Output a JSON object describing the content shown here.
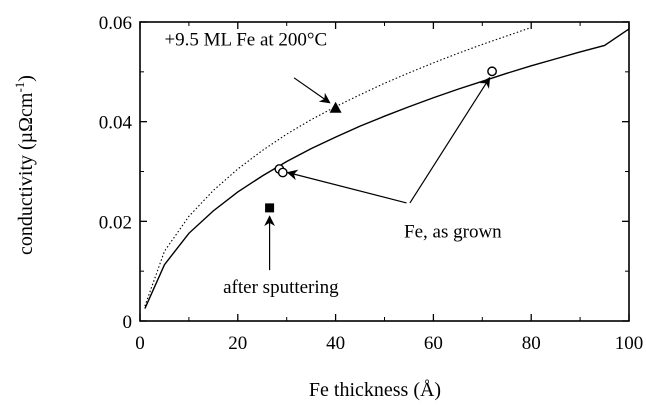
{
  "chart_data": {
    "type": "scatter",
    "title": "",
    "xlabel": "Fe thickness (Å)",
    "ylabel_text": "conductivity (",
    "ylabel_unit": "µΩcm",
    "ylabel_exp": "-1",
    "ylabel_close": ")",
    "xlim": [
      0,
      100
    ],
    "ylim": [
      0,
      0.06
    ],
    "x_ticks": [
      0,
      20,
      40,
      60,
      80,
      100
    ],
    "x_tick_labels": [
      "0",
      "20",
      "40",
      "60",
      "80",
      "100"
    ],
    "y_ticks": [
      0,
      0.02,
      0.04,
      0.06
    ],
    "y_tick_labels": [
      "0",
      "0.02",
      "0.04",
      "0.06"
    ],
    "grid": false,
    "series": [
      {
        "style": "solid-line",
        "x": [
          1,
          5,
          10,
          15,
          20,
          25,
          30,
          35,
          40,
          45,
          50,
          55,
          60,
          65,
          70,
          75,
          80,
          85,
          90,
          95,
          100
        ],
        "y": [
          0.0025,
          0.0113,
          0.0176,
          0.0221,
          0.0259,
          0.0291,
          0.032,
          0.0346,
          0.0369,
          0.0391,
          0.0411,
          0.043,
          0.0448,
          0.0465,
          0.0481,
          0.0497,
          0.0512,
          0.0526,
          0.054,
          0.0553,
          0.0586
        ]
      },
      {
        "style": "dotted-line",
        "x": [
          1,
          5,
          10,
          15,
          20,
          25,
          30,
          35,
          40,
          45,
          50,
          55,
          60,
          65,
          70,
          75,
          80
        ],
        "y": [
          0.003,
          0.014,
          0.021,
          0.0262,
          0.0305,
          0.0342,
          0.0375,
          0.0404,
          0.043,
          0.0454,
          0.0477,
          0.0498,
          0.0518,
          0.0537,
          0.0555,
          0.0572,
          0.0589
        ]
      },
      {
        "style": "open-circle",
        "x": [
          28.5,
          29.2,
          72.0
        ],
        "y": [
          0.0305,
          0.0298,
          0.0501
        ]
      },
      {
        "style": "filled-triangle",
        "x": [
          40.0
        ],
        "y": [
          0.0428
        ]
      },
      {
        "style": "filled-square",
        "x": [
          26.5
        ],
        "y": [
          0.0227
        ]
      }
    ],
    "annotations": [
      {
        "text": "+9.5 ML Fe at 200°C",
        "text_at": [
          5,
          0.0553
        ],
        "arrow_from": [
          31.5,
          0.0488
        ],
        "arrow_to": [
          38.8,
          0.0438
        ]
      },
      {
        "text": "Fe, as grown",
        "text_at": [
          54,
          0.0168
        ],
        "arrows_from": [
          [
            54.5,
            0.0237
          ],
          [
            55.2,
            0.0237
          ]
        ],
        "arrows_to": [
          [
            30.2,
            0.0298
          ],
          [
            71.5,
            0.0488
          ]
        ]
      },
      {
        "text": "after sputtering",
        "text_at": [
          17,
          0.0056
        ],
        "arrow_from": [
          26.5,
          0.0102
        ],
        "arrow_to": [
          26.5,
          0.021
        ]
      }
    ]
  }
}
